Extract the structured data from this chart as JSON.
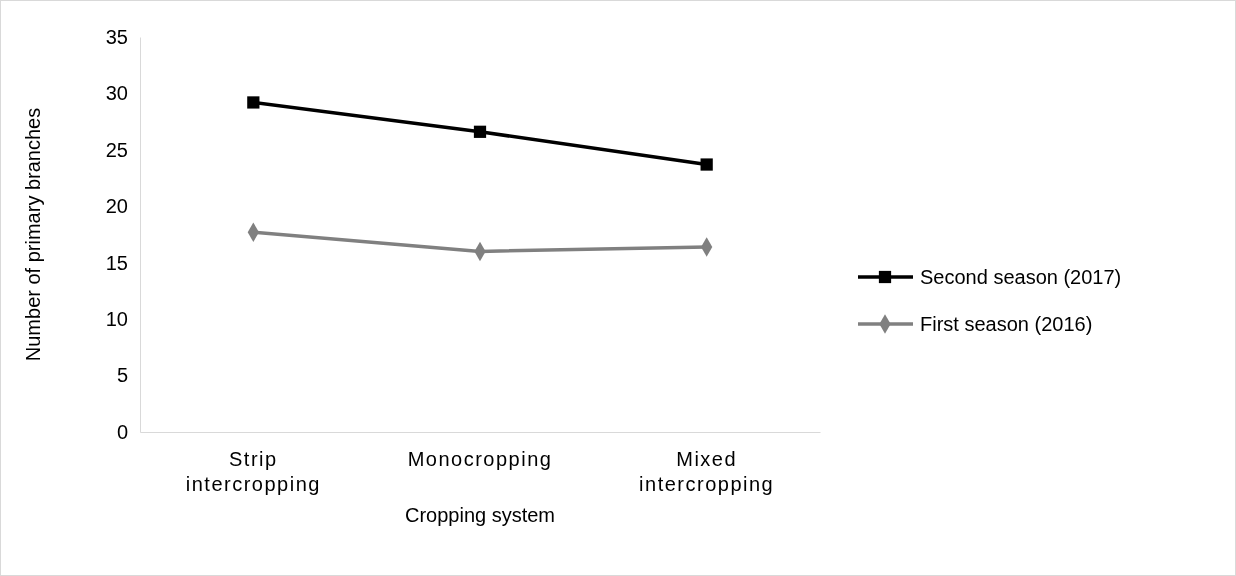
{
  "chart_data": {
    "type": "line",
    "xlabel": "Cropping system",
    "ylabel": "Number of primary branches",
    "categories": [
      "Strip intercropping",
      "Monocropping",
      "Mixed intercropping"
    ],
    "series": [
      {
        "name": "Second season (2017)",
        "color": "#000000",
        "marker": "square",
        "values": [
          29.2,
          26.6,
          23.7
        ]
      },
      {
        "name": "First season (2016)",
        "color": "#808080",
        "marker": "diamond",
        "values": [
          17.7,
          16.0,
          16.4
        ]
      }
    ],
    "ylim": [
      0,
      35
    ],
    "yticks": [
      0,
      5,
      10,
      15,
      20,
      25,
      30,
      35
    ],
    "grid": false,
    "legend": "right"
  }
}
